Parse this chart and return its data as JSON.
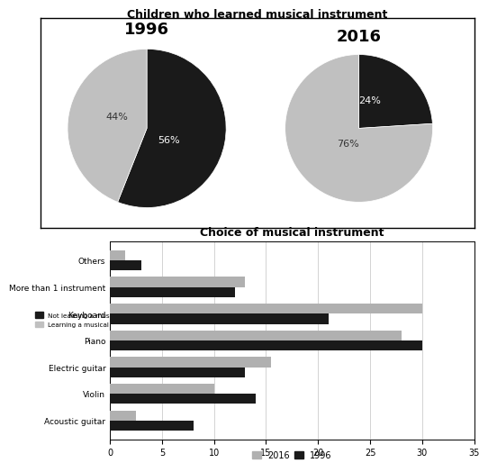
{
  "pie_title": "Children who learned musical instrument",
  "pie_1996_label": "1996",
  "pie_2016_label": "2016",
  "pie_1996": [
    56,
    44
  ],
  "pie_2016": [
    24,
    76
  ],
  "pie_colors": [
    "#1a1a1a",
    "#c0c0c0"
  ],
  "legend_labels": [
    "Not learning a musical instrument",
    "Learning a musical instrument"
  ],
  "bar_title": "Choice of musical instrument",
  "instruments": [
    "Acoustic guitar",
    "Violin",
    "Electric guitar",
    "Piano",
    "Keyboard",
    "More than 1 instrument",
    "Others"
  ],
  "values_2016": [
    2.5,
    10,
    15.5,
    28,
    30,
    13,
    1.5
  ],
  "values_1996": [
    8,
    14,
    13,
    30,
    21,
    12,
    3
  ],
  "bar_color_2016": "#b0b0b0",
  "bar_color_1996": "#1a1a1a",
  "bar_xlim": [
    0,
    35
  ],
  "bar_xticks": [
    0,
    5,
    10,
    15,
    20,
    25,
    30,
    35
  ],
  "bar_legend_2016": "2016",
  "bar_legend_1996": "1996",
  "bg_color": "#ffffff"
}
